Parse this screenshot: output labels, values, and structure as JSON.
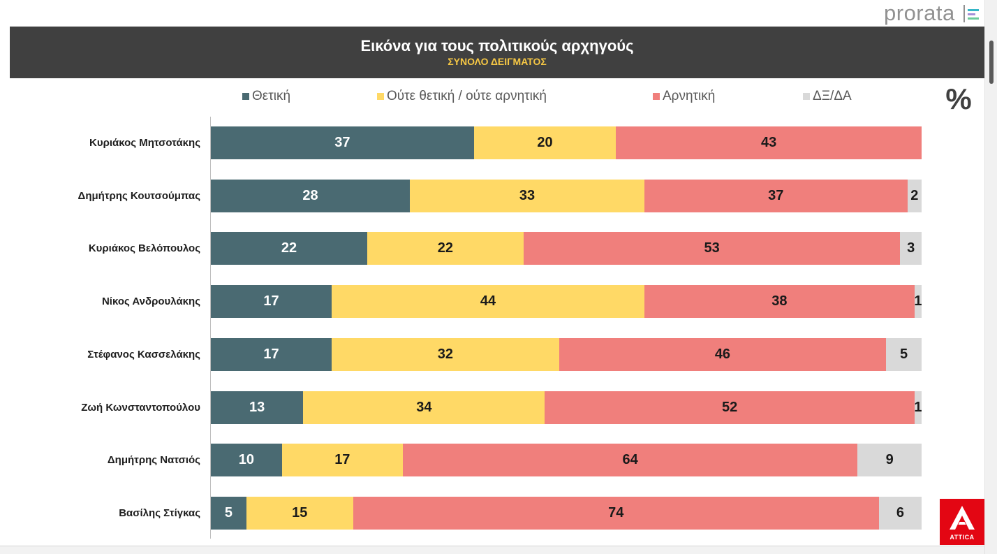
{
  "logo": {
    "text": "prorata"
  },
  "attica": {
    "text": "ATTICA"
  },
  "colors": {
    "header_bg": "#404040",
    "subtitle": "#f6c744",
    "attica_red": "#e30613"
  },
  "chart_data": {
    "type": "bar",
    "orientation": "horizontal",
    "stacked": true,
    "title": "Εικόνα για τους πολιτικούς αρχηγούς",
    "subtitle": "ΣΥΝΟΛΟ ΔΕΙΓΜΑΤΟΣ",
    "unit": "%",
    "xlim": [
      0,
      100
    ],
    "grid": false,
    "legend_position": "top",
    "categories": [
      "Κυριάκος Μητσοτάκης",
      "Δημήτρης Κουτσούμπας",
      "Κυριάκος Βελόπουλος",
      "Νίκος Ανδρουλάκης",
      "Στέφανος Κασσελάκης",
      "Ζωή Κωνσταντοπούλου",
      "Δημήτρης Νατσιός",
      "Βασίλης Στίγκας"
    ],
    "series": [
      {
        "name": "Θετική",
        "color": "#4a6a72",
        "values": [
          37,
          28,
          22,
          17,
          17,
          13,
          10,
          5
        ]
      },
      {
        "name": "Ούτε θετική / ούτε αρνητική",
        "color": "#ffd966",
        "values": [
          20,
          33,
          22,
          44,
          32,
          34,
          17,
          15
        ]
      },
      {
        "name": "Αρνητική",
        "color": "#f07f7c",
        "values": [
          43,
          37,
          53,
          38,
          46,
          52,
          64,
          74
        ]
      },
      {
        "name": "ΔΞ/ΔΑ",
        "color": "#d9d9d9",
        "values": [
          null,
          2,
          3,
          1,
          5,
          1,
          9,
          6
        ]
      }
    ]
  }
}
